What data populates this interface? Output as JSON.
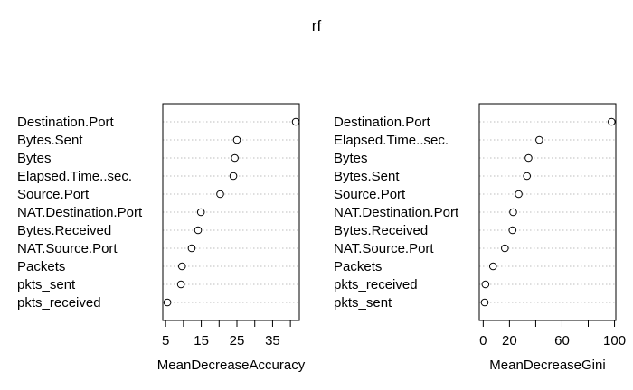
{
  "title": "rf",
  "chart_data": [
    {
      "type": "scatter",
      "xlabel": "MeanDecreaseAccuracy",
      "xticks": [
        5,
        10,
        15,
        20,
        25,
        30,
        35,
        40
      ],
      "xtick_labels": [
        "5",
        "",
        "15",
        "",
        "25",
        "",
        "35",
        ""
      ],
      "xlim": [
        4.2,
        42.5
      ],
      "grid": true,
      "categories": [
        "Destination.Port",
        "Bytes.Sent",
        "Bytes",
        "Elapsed.Time..sec.",
        "Source.Port",
        "NAT.Destination.Port",
        "Bytes.Received",
        "NAT.Source.Port",
        "Packets",
        "pkts_sent",
        "pkts_received"
      ],
      "values": [
        41.5,
        25.0,
        24.4,
        24.0,
        20.3,
        14.9,
        14.1,
        12.3,
        9.6,
        9.3,
        5.5
      ]
    },
    {
      "type": "scatter",
      "xlabel": "MeanDecreaseGini",
      "xticks": [
        0,
        20,
        40,
        60,
        80,
        100
      ],
      "xtick_labels": [
        "0",
        "20",
        "",
        "60",
        "",
        "100"
      ],
      "xlim": [
        -3,
        101
      ],
      "grid": true,
      "categories": [
        "Destination.Port",
        "Elapsed.Time..sec.",
        "Bytes",
        "Bytes.Sent",
        "Source.Port",
        "NAT.Destination.Port",
        "Bytes.Received",
        "NAT.Source.Port",
        "Packets",
        "pkts_received",
        "pkts_sent"
      ],
      "values": [
        97.8,
        42.7,
        34.5,
        33.3,
        27.0,
        22.8,
        22.3,
        16.5,
        7.5,
        1.7,
        1.1
      ]
    }
  ]
}
